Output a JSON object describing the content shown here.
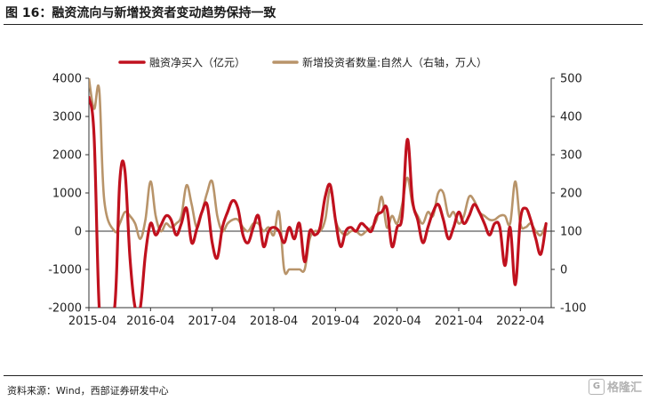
{
  "header": {
    "title": "图 16：融资流向与新增投资者变动趋势保持一致"
  },
  "footer": {
    "source": "资料来源：Wind，西部证券研发中心",
    "watermark": "格隆汇"
  },
  "chart_data": {
    "type": "line",
    "title": "",
    "x_ticks": [
      "2015-04",
      "2016-04",
      "2017-04",
      "2018-04",
      "2019-04",
      "2020-04",
      "2021-04",
      "2022-04"
    ],
    "y_left": {
      "label": "",
      "ticks": [
        "-2000",
        "-1000",
        "0",
        "1000",
        "2000",
        "3000",
        "4000"
      ],
      "ylim": [
        -2000,
        4000
      ]
    },
    "y_right": {
      "label": "",
      "ticks": [
        "-100",
        "0",
        "100",
        "200",
        "300",
        "400",
        "500"
      ],
      "ylim": [
        -100,
        500
      ]
    },
    "legend_position": "top",
    "series": [
      {
        "name": "融资净买入（亿元）",
        "axis": "left",
        "color": "#c0111e",
        "points": [
          [
            "2015-04",
            3500
          ],
          [
            "2015-05",
            2500
          ],
          [
            "2015-06",
            -2000
          ],
          [
            "2015-07",
            -2100
          ],
          [
            "2015-09",
            -2000
          ],
          [
            "2015-10",
            1300
          ],
          [
            "2015-11",
            1600
          ],
          [
            "2015-12",
            -700
          ],
          [
            "2016-01",
            -2000
          ],
          [
            "2016-02",
            -2000
          ],
          [
            "2016-03",
            -600
          ],
          [
            "2016-04",
            200
          ],
          [
            "2016-05",
            -100
          ],
          [
            "2016-06",
            150
          ],
          [
            "2016-07",
            400
          ],
          [
            "2016-08",
            300
          ],
          [
            "2016-09",
            -100
          ],
          [
            "2016-10",
            200
          ],
          [
            "2016-11",
            600
          ],
          [
            "2016-12",
            -300
          ],
          [
            "2017-01",
            50
          ],
          [
            "2017-02",
            500
          ],
          [
            "2017-03",
            700
          ],
          [
            "2017-04",
            -300
          ],
          [
            "2017-05",
            -700
          ],
          [
            "2017-06",
            100
          ],
          [
            "2017-07",
            500
          ],
          [
            "2017-08",
            800
          ],
          [
            "2017-09",
            600
          ],
          [
            "2017-10",
            -100
          ],
          [
            "2017-11",
            -300
          ],
          [
            "2017-12",
            100
          ],
          [
            "2018-01",
            400
          ],
          [
            "2018-02",
            -400
          ],
          [
            "2018-03",
            0
          ],
          [
            "2018-04",
            100
          ],
          [
            "2018-05",
            0
          ],
          [
            "2018-06",
            -300
          ],
          [
            "2018-07",
            100
          ],
          [
            "2018-08",
            -200
          ],
          [
            "2018-09",
            200
          ],
          [
            "2018-10",
            -800
          ],
          [
            "2018-11",
            0
          ],
          [
            "2018-12",
            -100
          ],
          [
            "2019-01",
            100
          ],
          [
            "2019-02",
            900
          ],
          [
            "2019-03",
            1200
          ],
          [
            "2019-04",
            300
          ],
          [
            "2019-05",
            -400
          ],
          [
            "2019-06",
            0
          ],
          [
            "2019-07",
            100
          ],
          [
            "2019-08",
            0
          ],
          [
            "2019-09",
            200
          ],
          [
            "2019-10",
            100
          ],
          [
            "2019-11",
            0
          ],
          [
            "2019-12",
            400
          ],
          [
            "2020-01",
            500
          ],
          [
            "2020-02",
            600
          ],
          [
            "2020-03",
            -400
          ],
          [
            "2020-04",
            100
          ],
          [
            "2020-05",
            400
          ],
          [
            "2020-06",
            2400
          ],
          [
            "2020-07",
            800
          ],
          [
            "2020-08",
            300
          ],
          [
            "2020-09",
            -300
          ],
          [
            "2020-10",
            100
          ],
          [
            "2020-11",
            500
          ],
          [
            "2020-12",
            700
          ],
          [
            "2021-01",
            300
          ],
          [
            "2021-02",
            -200
          ],
          [
            "2021-03",
            100
          ],
          [
            "2021-04",
            500
          ],
          [
            "2021-05",
            200
          ],
          [
            "2021-06",
            400
          ],
          [
            "2021-07",
            700
          ],
          [
            "2021-08",
            500
          ],
          [
            "2021-09",
            200
          ],
          [
            "2021-10",
            -100
          ],
          [
            "2021-11",
            200
          ],
          [
            "2021-12",
            100
          ],
          [
            "2022-01",
            -900
          ],
          [
            "2022-02",
            100
          ],
          [
            "2022-03",
            -1400
          ],
          [
            "2022-04",
            300
          ],
          [
            "2022-05",
            600
          ],
          [
            "2022-06",
            300
          ],
          [
            "2022-07",
            -200
          ],
          [
            "2022-08",
            -600
          ],
          [
            "2022-09",
            200
          ]
        ]
      },
      {
        "name": "新增投资者数量:自然人（右轴，万人）",
        "axis": "right",
        "color": "#b8946a",
        "points": [
          [
            "2015-04",
            500
          ],
          [
            "2015-05",
            420
          ],
          [
            "2015-06",
            470
          ],
          [
            "2015-07",
            180
          ],
          [
            "2015-09",
            100
          ],
          [
            "2015-10",
            120
          ],
          [
            "2015-11",
            150
          ],
          [
            "2015-12",
            140
          ],
          [
            "2016-01",
            120
          ],
          [
            "2016-02",
            80
          ],
          [
            "2016-03",
            130
          ],
          [
            "2016-04",
            230
          ],
          [
            "2016-05",
            140
          ],
          [
            "2016-06",
            100
          ],
          [
            "2016-07",
            120
          ],
          [
            "2016-08",
            110
          ],
          [
            "2016-09",
            120
          ],
          [
            "2016-10",
            140
          ],
          [
            "2016-11",
            220
          ],
          [
            "2016-12",
            170
          ],
          [
            "2017-01",
            110
          ],
          [
            "2017-02",
            150
          ],
          [
            "2017-03",
            200
          ],
          [
            "2017-04",
            230
          ],
          [
            "2017-05",
            140
          ],
          [
            "2017-06",
            100
          ],
          [
            "2017-07",
            120
          ],
          [
            "2017-08",
            130
          ],
          [
            "2017-09",
            130
          ],
          [
            "2017-10",
            110
          ],
          [
            "2017-11",
            100
          ],
          [
            "2017-12",
            120
          ],
          [
            "2018-01",
            120
          ],
          [
            "2018-02",
            100
          ],
          [
            "2018-03",
            110
          ],
          [
            "2018-04",
            90
          ],
          [
            "2018-05",
            150
          ],
          [
            "2018-06",
            0
          ],
          [
            "2018-07",
            0
          ],
          [
            "2018-08",
            0
          ],
          [
            "2018-09",
            0
          ],
          [
            "2018-10",
            0
          ],
          [
            "2018-11",
            80
          ],
          [
            "2018-12",
            100
          ],
          [
            "2019-01",
            100
          ],
          [
            "2019-02",
            130
          ],
          [
            "2019-03",
            210
          ],
          [
            "2019-04",
            130
          ],
          [
            "2019-05",
            100
          ],
          [
            "2019-06",
            90
          ],
          [
            "2019-07",
            100
          ],
          [
            "2019-08",
            100
          ],
          [
            "2019-09",
            90
          ],
          [
            "2019-10",
            100
          ],
          [
            "2019-11",
            110
          ],
          [
            "2019-12",
            130
          ],
          [
            "2020-01",
            190
          ],
          [
            "2020-02",
            110
          ],
          [
            "2020-03",
            140
          ],
          [
            "2020-04",
            120
          ],
          [
            "2020-05",
            170
          ],
          [
            "2020-06",
            240
          ],
          [
            "2020-07",
            170
          ],
          [
            "2020-08",
            140
          ],
          [
            "2020-09",
            120
          ],
          [
            "2020-10",
            150
          ],
          [
            "2020-11",
            140
          ],
          [
            "2020-12",
            200
          ],
          [
            "2021-01",
            200
          ],
          [
            "2021-02",
            140
          ],
          [
            "2021-03",
            150
          ],
          [
            "2021-04",
            120
          ],
          [
            "2021-05",
            140
          ],
          [
            "2021-06",
            190
          ],
          [
            "2021-07",
            180
          ],
          [
            "2021-08",
            150
          ],
          [
            "2021-09",
            140
          ],
          [
            "2021-10",
            130
          ],
          [
            "2021-11",
            130
          ],
          [
            "2021-12",
            140
          ],
          [
            "2022-01",
            140
          ],
          [
            "2022-02",
            120
          ],
          [
            "2022-03",
            230
          ],
          [
            "2022-04",
            120
          ],
          [
            "2022-05",
            110
          ],
          [
            "2022-06",
            120
          ],
          [
            "2022-07",
            100
          ],
          [
            "2022-08",
            90
          ],
          [
            "2022-09",
            120
          ]
        ]
      }
    ]
  }
}
